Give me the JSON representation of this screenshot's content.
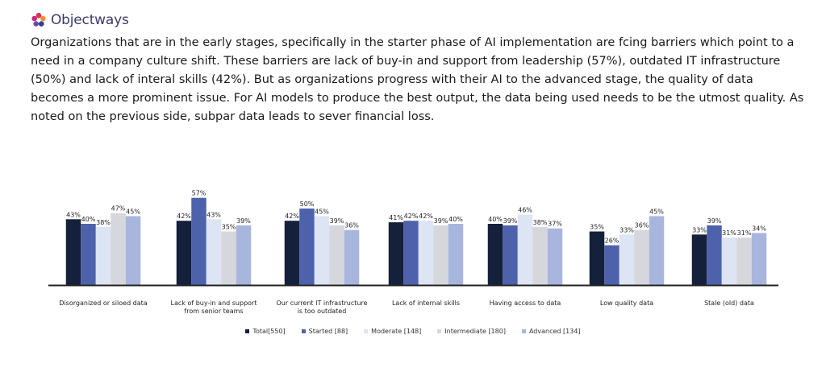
{
  "brand": {
    "name": "Objectways"
  },
  "intro_text": "Organizations that are in the early stages, specifically in the starter phase of AI implementation are fcing barriers which point to a need in a company culture shift. These barriers are lack of buy-in and support from leadership (57%), outdated IT infrastructure (50%) and lack of interal skills (42%). But as organizations progress with their AI to the advanced stage, the quality of data becomes a more prominent issue. For AI models to produce the best output, the data being used needs to be the utmost quality. As noted on the previous side, subpar data leads to sever financial loss.",
  "chart_data": {
    "type": "bar",
    "categories": [
      [
        "Disorganized or siloed data"
      ],
      [
        "Lack of buy-in and support",
        "from senior teams"
      ],
      [
        "Our current IT infrastructure",
        "is too outdated"
      ],
      [
        "Lack of internal skills"
      ],
      [
        "Having access to data"
      ],
      [
        "Low quality data"
      ],
      [
        "Stale (old) data"
      ]
    ],
    "series": [
      {
        "name": "Total[550]",
        "color": "#15203a",
        "values": [
          43,
          42,
          42,
          41,
          40,
          35,
          33
        ]
      },
      {
        "name": "Started [88]",
        "color": "#4e62ab",
        "values": [
          40,
          57,
          50,
          42,
          39,
          26,
          39
        ]
      },
      {
        "name": "Moderate [148]",
        "color": "#dde4f3",
        "values": [
          38,
          43,
          45,
          42,
          46,
          33,
          31
        ]
      },
      {
        "name": "Intermediate [180]",
        "color": "#d6d6dd",
        "values": [
          47,
          35,
          39,
          39,
          38,
          36,
          31
        ]
      },
      {
        "name": "Advanced [134]",
        "color": "#a8b6dd",
        "values": [
          45,
          39,
          36,
          40,
          37,
          45,
          34
        ]
      }
    ],
    "value_suffix": "%",
    "ylim": [
      0,
      60
    ],
    "grid": false,
    "legend_position": "bottom"
  }
}
